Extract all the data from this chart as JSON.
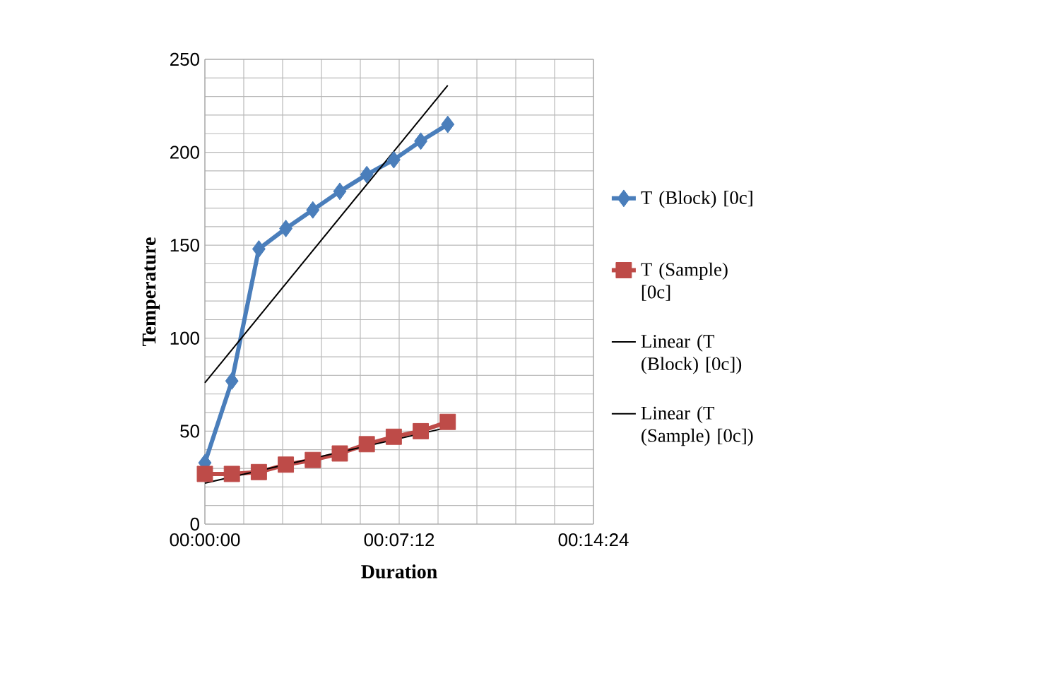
{
  "chart_data": {
    "type": "line",
    "xlabel": "Duration",
    "ylabel": "Temperature",
    "xlim": [
      0,
      864
    ],
    "ylim": [
      0,
      250
    ],
    "xticks": [
      {
        "value": 0,
        "label": "00:00:00"
      },
      {
        "value": 86.4,
        "label": null
      },
      {
        "value": 172.8,
        "label": null
      },
      {
        "value": 259.2,
        "label": null
      },
      {
        "value": 345.6,
        "label": null
      },
      {
        "value": 432,
        "label": "00:07:12"
      },
      {
        "value": 518.4,
        "label": null
      },
      {
        "value": 604.8,
        "label": null
      },
      {
        "value": 691.2,
        "label": null
      },
      {
        "value": 777.6,
        "label": null
      },
      {
        "value": 864,
        "label": "00:14:24"
      }
    ],
    "yticks": [
      0,
      {
        "value": 10,
        "label": null
      },
      {
        "value": 20,
        "label": null
      },
      {
        "value": 30,
        "label": null
      },
      {
        "value": 40,
        "label": null
      },
      50,
      {
        "value": 60,
        "label": null
      },
      {
        "value": 70,
        "label": null
      },
      {
        "value": 80,
        "label": null
      },
      {
        "value": 90,
        "label": null
      },
      100,
      {
        "value": 110,
        "label": null
      },
      {
        "value": 120,
        "label": null
      },
      {
        "value": 130,
        "label": null
      },
      {
        "value": 140,
        "label": null
      },
      150,
      {
        "value": 160,
        "label": null
      },
      {
        "value": 170,
        "label": null
      },
      {
        "value": 180,
        "label": null
      },
      {
        "value": 190,
        "label": null
      },
      200,
      {
        "value": 210,
        "label": null
      },
      {
        "value": 220,
        "label": null
      },
      {
        "value": 230,
        "label": null
      },
      {
        "value": 240,
        "label": null
      },
      250
    ],
    "grid": true,
    "legend": "right",
    "series": [
      {
        "name": "T (Block) [0c]",
        "color": "#4a7ebb",
        "marker": "diamond",
        "x": [
          0,
          60,
          120,
          180,
          240,
          300,
          360,
          420,
          480,
          540
        ],
        "values": [
          33,
          77,
          148,
          159,
          169,
          179,
          188,
          196,
          206,
          215
        ]
      },
      {
        "name": "T (Sample) [0c]",
        "color": "#be4b48",
        "marker": "square",
        "x": [
          0,
          60,
          120,
          180,
          240,
          300,
          360,
          420,
          480,
          540
        ],
        "values": [
          27,
          27,
          28,
          32,
          34.5,
          38,
          43,
          47,
          50,
          55
        ]
      },
      {
        "name": "Linear (T (Block) [0c])",
        "color": "#000000",
        "marker": "none",
        "x": [
          0,
          540
        ],
        "values": [
          76,
          236
        ]
      },
      {
        "name": "Linear (T (Sample) [0c])",
        "color": "#000000",
        "marker": "none",
        "x": [
          0,
          540
        ],
        "values": [
          22,
          52
        ]
      }
    ]
  }
}
